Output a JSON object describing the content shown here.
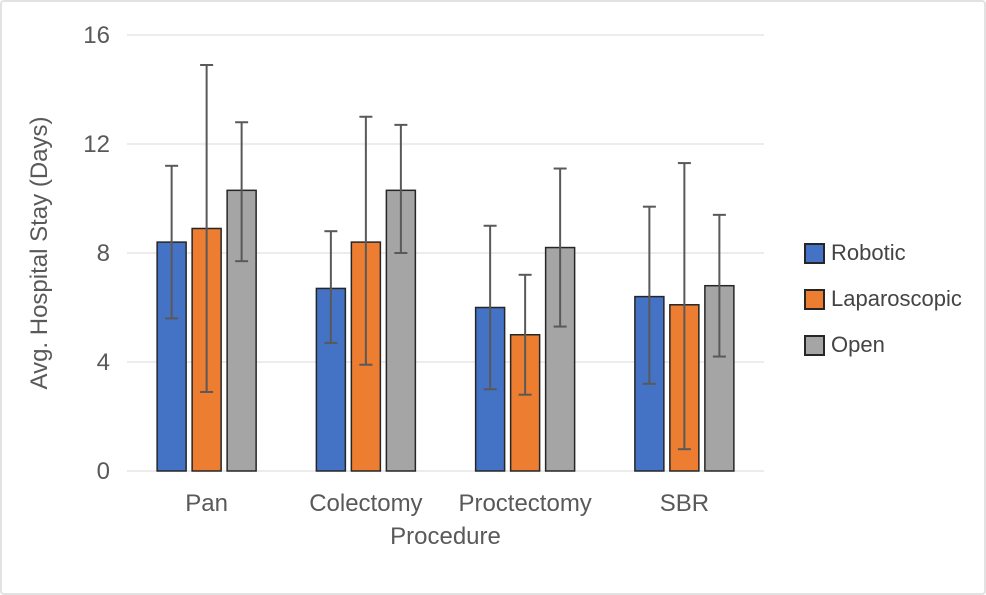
{
  "chart_data": {
    "type": "bar",
    "title": "",
    "xlabel": "Procedure",
    "ylabel": "Avg. Hospital Stay (Days)",
    "categories": [
      "Pan",
      "Colectomy",
      "Proctectomy",
      "SBR"
    ],
    "series": [
      {
        "name": "Robotic",
        "color": "#4472C4",
        "values": [
          8.4,
          6.7,
          6.0,
          6.4
        ],
        "error_low": [
          5.6,
          4.7,
          3.0,
          3.2
        ],
        "error_high": [
          11.2,
          8.8,
          9.0,
          9.7
        ]
      },
      {
        "name": "Laparoscopic",
        "color": "#ED7D31",
        "values": [
          8.9,
          8.4,
          5.0,
          6.1
        ],
        "error_low": [
          2.9,
          3.9,
          2.8,
          0.8
        ],
        "error_high": [
          14.9,
          13.0,
          7.2,
          11.3
        ]
      },
      {
        "name": "Open",
        "color": "#A5A5A5",
        "values": [
          10.3,
          10.3,
          8.2,
          6.8
        ],
        "error_low": [
          7.7,
          8.0,
          5.3,
          4.2
        ],
        "error_high": [
          12.8,
          12.7,
          11.1,
          9.4
        ]
      }
    ],
    "y_ticks": [
      0,
      4,
      8,
      12,
      16
    ],
    "ylim": [
      0,
      16
    ],
    "grid": true,
    "error_bars": true,
    "legend_position": "right",
    "colors": {
      "grid": "#d9d9d9",
      "bar_border": "#262626",
      "error_bar": "#595959",
      "tick_text": "#595959",
      "axis_title_text": "#595959",
      "legend_text": "#444444"
    }
  }
}
